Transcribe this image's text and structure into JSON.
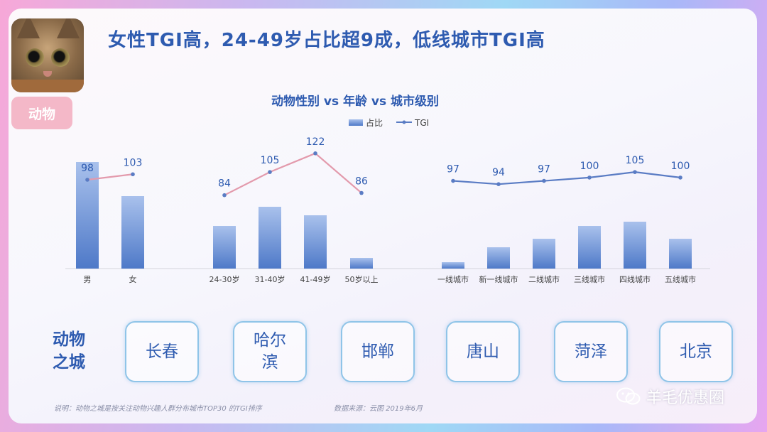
{
  "header": {
    "title": "女性TGI高，24-49岁占比超9成，低线城市TGI高",
    "tag": "动物"
  },
  "chart_data": {
    "type": "bar+line",
    "title": "动物性别 vs 年龄 vs 城市级别",
    "legend": {
      "bar": "占比",
      "line": "TGI",
      "placement": "top-center"
    },
    "colors": {
      "bar_top": "#9bb6e6",
      "bar_bottom": "#4e79c8",
      "line_gender_age": "#e39aac",
      "line_city": "#5a7cc4",
      "label": "#2e5bb0",
      "tick": "#444444"
    },
    "groups": [
      {
        "name": "gender",
        "categories": [
          "男",
          "女"
        ],
        "share_percent": [
          50,
          34
        ],
        "tgi": [
          98,
          103
        ]
      },
      {
        "name": "age",
        "categories": [
          "24-30岁",
          "31-40岁",
          "41-49岁",
          "50岁以上"
        ],
        "share_percent": [
          20,
          29,
          25,
          5
        ],
        "tgi": [
          84,
          105,
          122,
          86
        ]
      },
      {
        "name": "city_tier",
        "categories": [
          "一线城市",
          "新一线城市",
          "二线城市",
          "三线城市",
          "四线城市",
          "五线城市"
        ],
        "share_percent": [
          3,
          10,
          14,
          20,
          22,
          14
        ],
        "tgi": [
          97,
          94,
          97,
          100,
          105,
          100
        ]
      }
    ]
  },
  "cities": {
    "heading_line1": "动物",
    "heading_line2": "之城",
    "items": [
      {
        "line1": "长春",
        "line2": ""
      },
      {
        "line1": "哈尔",
        "line2": "滨"
      },
      {
        "line1": "邯郸",
        "line2": ""
      },
      {
        "line1": "唐山",
        "line2": ""
      },
      {
        "line1": "菏泽",
        "line2": ""
      },
      {
        "line1": "北京",
        "line2": ""
      }
    ]
  },
  "footer": {
    "note": "说明：动物之城是按关注动物兴趣人群分布城市TOP30 的TGI排序",
    "source": "数据来源：云图  2019年6月",
    "watermark": "羊毛优惠圈"
  }
}
